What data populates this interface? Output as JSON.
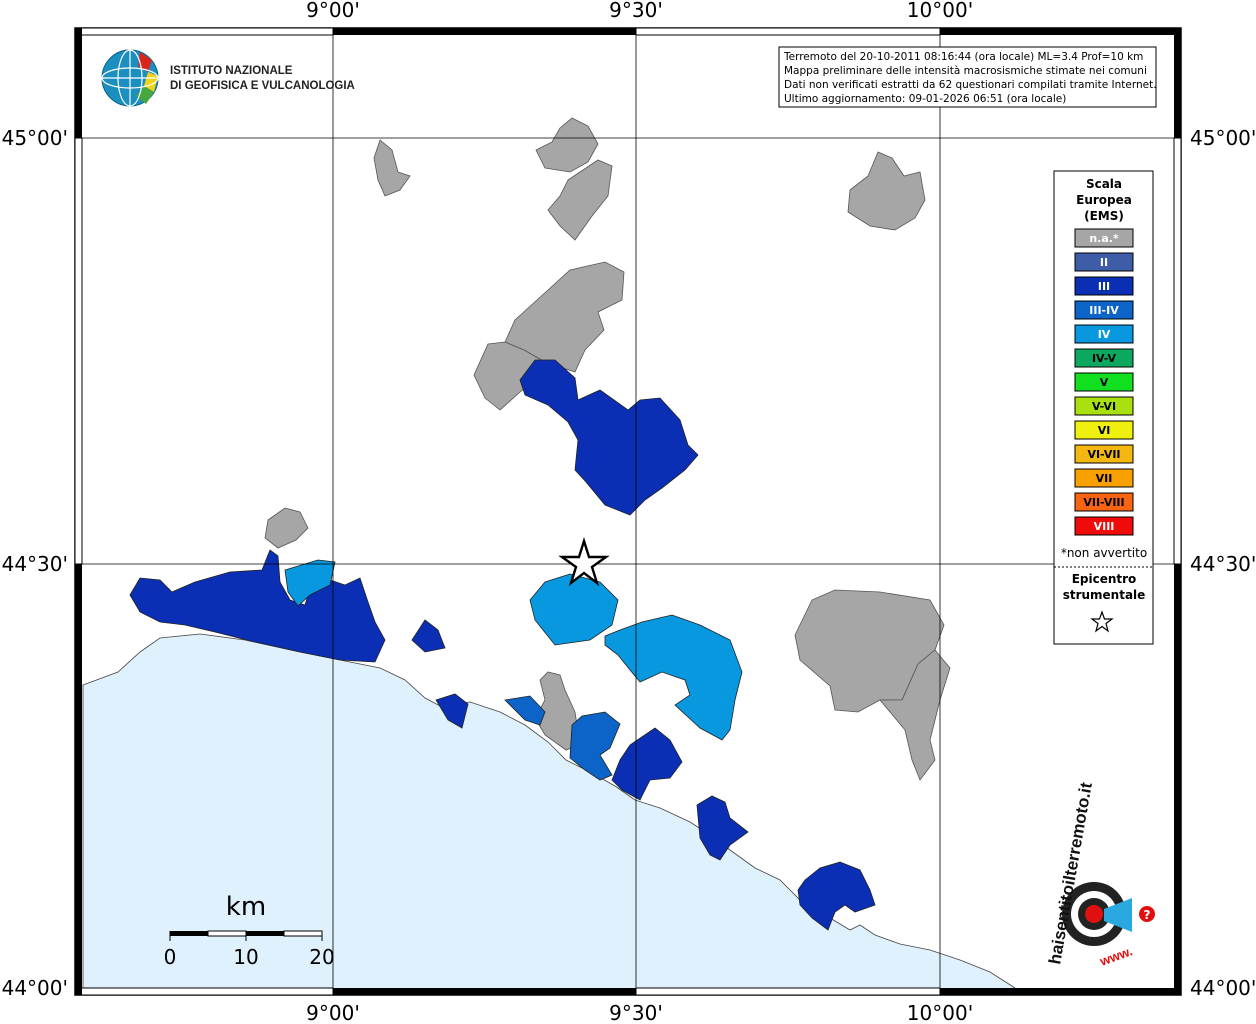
{
  "map": {
    "x_ticks": [
      "9°00'",
      "9°30'",
      "10°00'"
    ],
    "y_ticks": [
      "45°00'",
      "44°30'",
      "44°00'"
    ]
  },
  "info_box": {
    "lines": [
      "Terremoto del 20-10-2011 08:16:44 (ora locale) ML=3.4 Prof=10 km",
      "Mappa preliminare delle intensità macrosismiche stimate nei comuni",
      "Dati non verificati estratti da 62 questionari compilati tramite Internet.",
      "Ultimo aggiornamento: 09-01-2026 06:51 (ora locale)"
    ]
  },
  "institute": {
    "line1": "ISTITUTO NAZIONALE",
    "line2": "DI GEOFISICA E VULCANOLOGIA"
  },
  "legend": {
    "title_lines": [
      "Scala",
      "Europea",
      "(EMS)"
    ],
    "items": [
      {
        "label": "n.a.*",
        "color": "#a6a6a6"
      },
      {
        "label": "II",
        "color": "#3f5ca8"
      },
      {
        "label": "III",
        "color": "#0a2fb4"
      },
      {
        "label": "III-IV",
        "color": "#0c64c8"
      },
      {
        "label": "IV",
        "color": "#0898e0"
      },
      {
        "label": "IV-V",
        "color": "#0ca860"
      },
      {
        "label": "V",
        "color": "#10e020"
      },
      {
        "label": "V-VI",
        "color": "#a8e010"
      },
      {
        "label": "VI",
        "color": "#f0f010"
      },
      {
        "label": "VI-VII",
        "color": "#f4b810"
      },
      {
        "label": "VII",
        "color": "#f8a000"
      },
      {
        "label": "VII-VIII",
        "color": "#f86410"
      },
      {
        "label": "VIII",
        "color": "#f00a0a"
      }
    ],
    "note": "*non avvertito",
    "epicenter_line1": "Epicentro",
    "epicenter_line2": "strumentale"
  },
  "scale_bar": {
    "unit": "km",
    "labels": [
      "0",
      "10",
      "20"
    ]
  },
  "haisentito": {
    "text": "haisentitoilterremoto.it",
    "www": "www."
  },
  "colors": {
    "sea": "#dff1fd",
    "na": "#a6a6a6",
    "iii": "#0a2fb4",
    "iii_iv": "#0c64c8",
    "iv": "#0898e0"
  }
}
